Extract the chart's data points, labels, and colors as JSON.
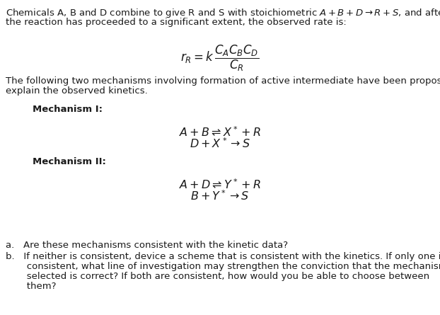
{
  "bg_color": "#ffffff",
  "text_color": "#1a1a1a",
  "figsize": [
    6.22,
    4.45
  ],
  "dpi": 100,
  "line1": "Chemicals A, B and D combine to give R and S with stoichiometric $A + B + D \\rightarrow R + S$, and after",
  "line2": "the reaction has proceeded to a significant extent, the observed rate is:",
  "rate_eq": "$r_R = k\\,\\dfrac{C_A C_B C_D}{C_R}$",
  "line3": "The following two mechanisms involving formation of active intermediate have been proposed to",
  "line4": "explain the observed kinetics.",
  "mech1_label": "Mechanism I:",
  "mech1_eq1": "$A + B \\rightleftharpoons X^* + R$",
  "mech1_eq2": "$D + X^* \\rightarrow S$",
  "mech2_label": "Mechanism II:",
  "mech2_eq1": "$A + D \\rightleftharpoons Y^* + R$",
  "mech2_eq2": "$B + Y^* \\rightarrow S$",
  "qa": "a.   Are these mechanisms consistent with the kinetic data?",
  "qb_line1": "b.   If neither is consistent, device a scheme that is consistent with the kinetics. If only one is",
  "qb_line2": "       consistent, what line of investigation may strengthen the conviction that the mechanism",
  "qb_line3": "       selected is correct? If both are consistent, how would you be able to choose between",
  "qb_line4": "       them?",
  "font_size_main": 9.5,
  "font_size_eq": 11.5,
  "font_size_rate": 12
}
